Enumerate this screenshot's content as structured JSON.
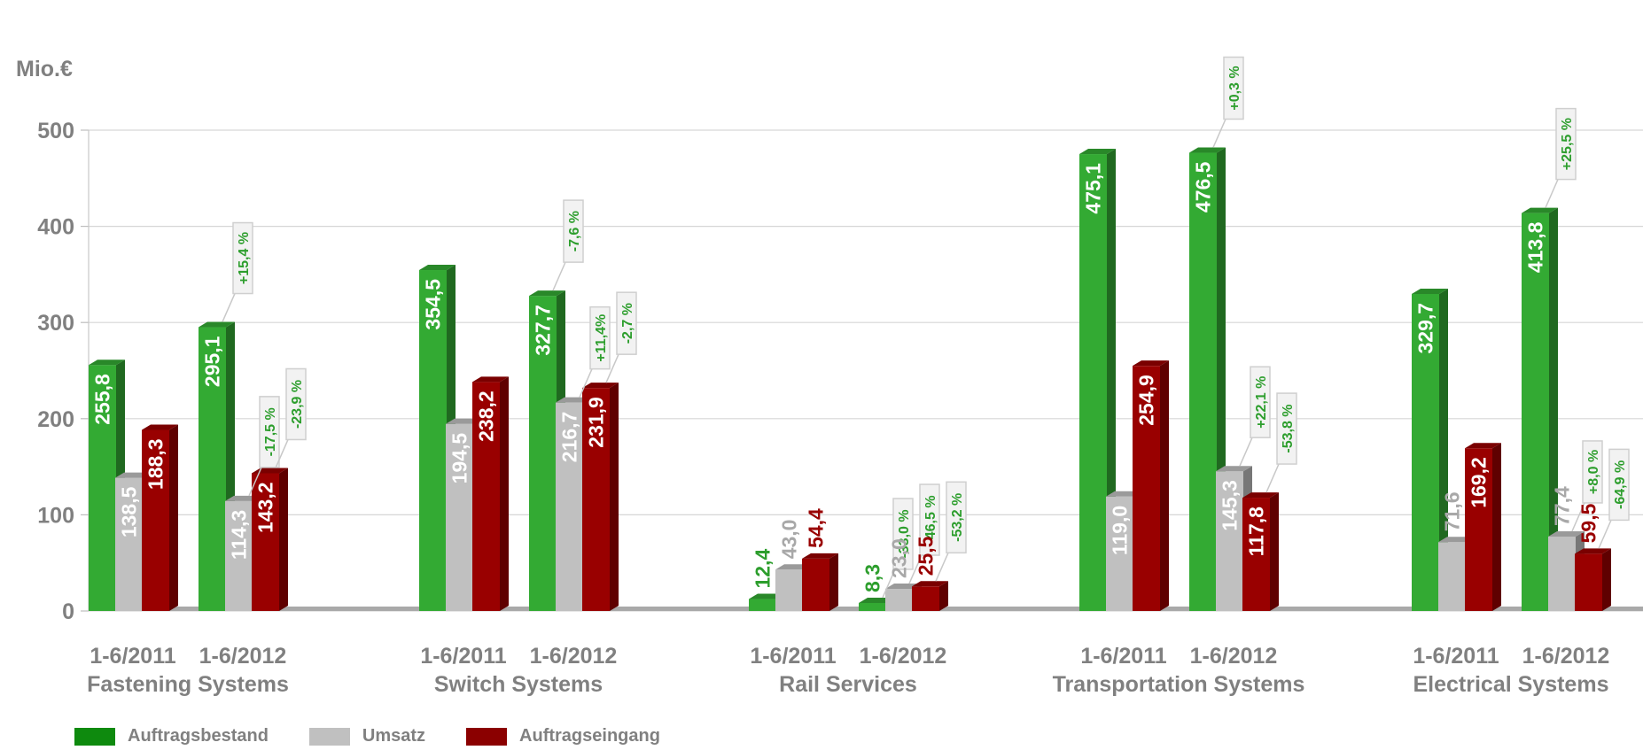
{
  "chart_data": {
    "type": "bar",
    "ylabel": "Mio.€",
    "ylim": [
      0,
      500
    ],
    "yticks": [
      "0",
      "100",
      "200",
      "300",
      "400",
      "500"
    ],
    "grid": true,
    "legend_position": "bottom-left",
    "series": [
      {
        "name": "Auftragsbestand",
        "color": "#33aa33"
      },
      {
        "name": "Umsatz",
        "color": "#c0c0c0"
      },
      {
        "name": "Auftragseingang",
        "color": "#990000"
      }
    ],
    "groups": [
      {
        "name": "Fastening Systems",
        "periods": [
          {
            "label": "1-6/2011",
            "values": [
              255.8,
              138.5,
              188.3
            ],
            "value_labels": [
              "255,8",
              "138,5",
              "188,3"
            ],
            "changes": [
              null,
              null,
              null
            ]
          },
          {
            "label": "1-6/2012",
            "values": [
              295.1,
              114.3,
              143.2
            ],
            "value_labels": [
              "295,1",
              "114,3",
              "143,2"
            ],
            "changes": [
              "+15,4 %",
              "-17,5 %",
              "-23,9 %"
            ]
          }
        ]
      },
      {
        "name": "Switch Systems",
        "periods": [
          {
            "label": "1-6/2011",
            "values": [
              354.5,
              194.5,
              238.2
            ],
            "value_labels": [
              "354,5",
              "194,5",
              "238,2"
            ],
            "changes": [
              null,
              null,
              null
            ]
          },
          {
            "label": "1-6/2012",
            "values": [
              327.7,
              216.7,
              231.9
            ],
            "value_labels": [
              "327,7",
              "216,7",
              "231,9"
            ],
            "changes": [
              "-7,6 %",
              "+11,4%",
              "-2,7 %"
            ]
          }
        ]
      },
      {
        "name": "Rail Services",
        "periods": [
          {
            "label": "1-6/2011",
            "values": [
              12.4,
              43.0,
              54.4
            ],
            "value_labels": [
              "12,4",
              "43,0",
              "54,4"
            ],
            "changes": [
              null,
              null,
              null
            ]
          },
          {
            "label": "1-6/2012",
            "values": [
              8.3,
              23.0,
              25.5
            ],
            "value_labels": [
              "8,3",
              "23,0",
              "25,5"
            ],
            "changes": [
              "-33,0 %",
              "-46,5 %",
              "-53,2 %"
            ]
          }
        ]
      },
      {
        "name": "Transportation Systems",
        "periods": [
          {
            "label": "1-6/2011",
            "values": [
              475.1,
              119.0,
              254.9
            ],
            "value_labels": [
              "475,1",
              "119,0",
              "254,9"
            ],
            "changes": [
              null,
              null,
              null
            ]
          },
          {
            "label": "1-6/2012",
            "values": [
              476.5,
              145.3,
              117.8
            ],
            "value_labels": [
              "476,5",
              "145,3",
              "117,8"
            ],
            "changes": [
              "+0,3 %",
              "+22,1 %",
              "-53,8 %"
            ]
          }
        ]
      },
      {
        "name": "Electrical Systems",
        "periods": [
          {
            "label": "1-6/2011",
            "values": [
              329.7,
              71.6,
              169.2
            ],
            "value_labels": [
              "329,7",
              "71,6",
              "169,2"
            ],
            "changes": [
              null,
              null,
              null
            ]
          },
          {
            "label": "1-6/2012",
            "values": [
              413.8,
              77.4,
              59.5
            ],
            "value_labels": [
              "413,8",
              "77,4",
              "59,5"
            ],
            "changes": [
              "+25,5 %",
              "+8,0 %",
              "-64,9 %"
            ]
          }
        ]
      }
    ]
  }
}
